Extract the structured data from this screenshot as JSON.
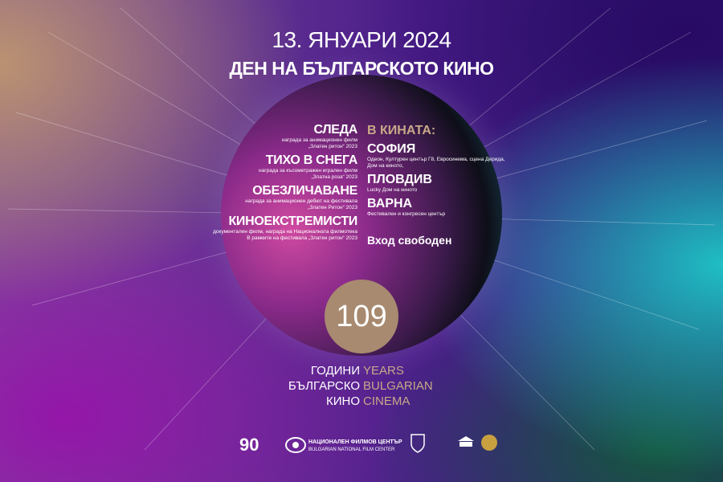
{
  "header": {
    "date": "13. ЯНУАРИ 2024",
    "title": "ДЕН НА БЪЛГАРСКОТО КИНО"
  },
  "films": [
    {
      "title": "СЛЕДА",
      "lines": [
        "награда за анимационен филм",
        "„Златен ритон“ 2023"
      ]
    },
    {
      "title": "ТИХО В СНЕГА",
      "lines": [
        "награда за късометражен игрален филм",
        "„Златна роза“ 2023"
      ]
    },
    {
      "title": "ОБЕЗЛИЧАВАНЕ",
      "lines": [
        "награда за анимационен дебют на фестивала",
        "„Златен Ритон“ 2023"
      ]
    },
    {
      "title": "КИНОЕКСТРЕМИСТИ",
      "lines": [
        "документален филм, награда на Националната филмотека",
        "В рамките на фестивала „Златен ритон“ 2023"
      ]
    }
  ],
  "cinemas": {
    "heading": "В КИНАТА:",
    "cities": [
      {
        "name": "СОФИЯ",
        "lines": [
          "Одеон, Културен център Г8, Евросинема, сцена Дерида,",
          "Дом на киното,"
        ]
      },
      {
        "name": "ПЛОВДИВ",
        "lines": [
          "Lucky Дом на киното"
        ]
      },
      {
        "name": "ВАРНА",
        "lines": [
          "Фестивален и конгресен център"
        ]
      }
    ],
    "free": "Вход свободен"
  },
  "anniversary": {
    "number": "109",
    "bg": [
      "ГОДИНИ",
      "БЪЛГАРСКО",
      "КИНО"
    ],
    "en": [
      "YEARS",
      "BULGARIAN",
      "CINEMA"
    ]
  },
  "logos": {
    "ninety": "90",
    "nfc_bg": "НАЦИОНАЛЕН ФИЛМОВ ЦЕНТЪР",
    "nfc_en": "BULGARIAN NATIONAL FILM CENTER"
  }
}
